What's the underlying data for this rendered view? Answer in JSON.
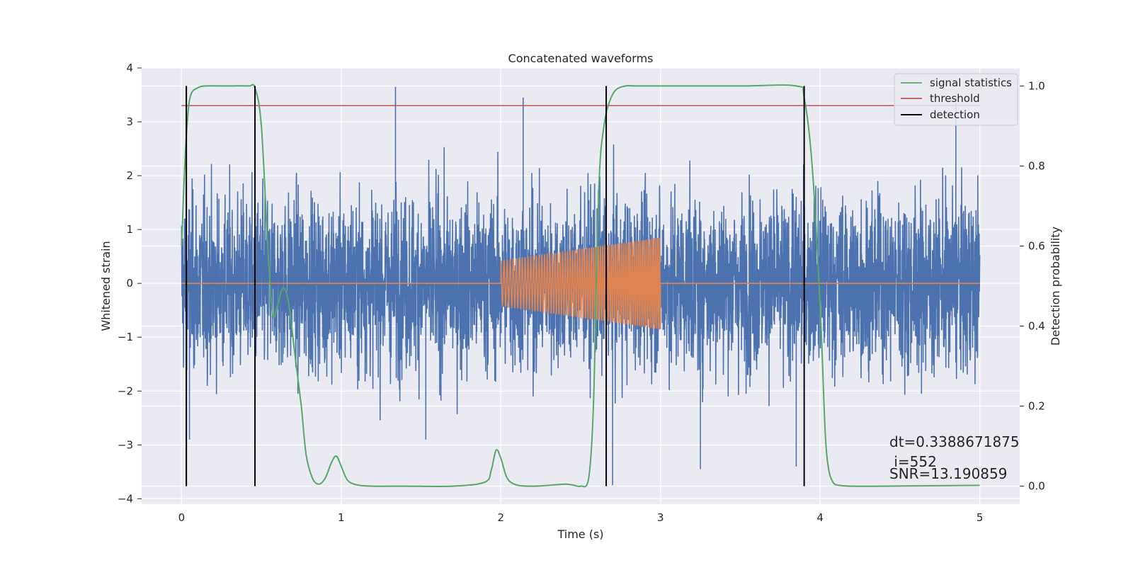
{
  "chart_data": {
    "type": "line",
    "title": "Concatenated waveforms",
    "xlabel": "Time (s)",
    "ylabel": "Whitened strain",
    "y2label": "Detection probability",
    "xlim": [
      -0.25,
      5.25
    ],
    "ylim": [
      -4.1,
      4.0
    ],
    "y2lim": [
      -0.045,
      1.045
    ],
    "x_ticks": [
      "0",
      "1",
      "2",
      "3",
      "4",
      "5"
    ],
    "y_ticks": [
      "−4",
      "−3",
      "−2",
      "−1",
      "0",
      "1",
      "2",
      "3",
      "4"
    ],
    "y2_ticks": [
      "0.0",
      "0.2",
      "0.4",
      "0.6",
      "0.8",
      "1.0"
    ],
    "grid": true,
    "legend_position": "top-right",
    "legend": [
      {
        "label": "signal statistics",
        "color": "#55a868"
      },
      {
        "label": "threshold",
        "color": "#c44e52"
      },
      {
        "label": "detection",
        "color": "#000000"
      }
    ],
    "series": [
      {
        "kind": "noise",
        "color": "#4c72b0",
        "x_range": [
          0,
          5
        ],
        "typical_amplitude": 0.8,
        "extreme_values": [
          [
            0.05,
            -2.9
          ],
          [
            1.34,
            3.65
          ],
          [
            1.53,
            -2.9
          ],
          [
            2.14,
            3.45
          ],
          [
            2.7,
            -3.75
          ],
          [
            3.25,
            -3.45
          ],
          [
            3.85,
            -3.4
          ],
          [
            4.85,
            3.35
          ]
        ]
      },
      {
        "kind": "chirp",
        "color": "#dd8452",
        "x_range": [
          0,
          5
        ],
        "chirp_start": 2.0,
        "chirp_end": 3.0,
        "amplitude_start": 0.42,
        "amplitude_end": 0.85,
        "freq_start": 50,
        "freq_end": 85
      },
      {
        "name": "signal statistics",
        "axis": "right",
        "color": "#55a868",
        "x": [
          0.0,
          0.02,
          0.04,
          0.06,
          0.1,
          0.15,
          0.3,
          0.42,
          0.46,
          0.5,
          0.54,
          0.57,
          0.6,
          0.635,
          0.67,
          0.71,
          0.75,
          0.78,
          0.82,
          0.86,
          0.9,
          0.94,
          0.97,
          1.0,
          1.04,
          1.1,
          1.2,
          1.4,
          1.7,
          1.9,
          1.94,
          1.97,
          2.0,
          2.04,
          2.1,
          2.2,
          2.3,
          2.4,
          2.45,
          2.5,
          2.55,
          2.58,
          2.6,
          2.62,
          2.65,
          2.68,
          2.72,
          2.78,
          2.85,
          3.0,
          3.5,
          3.85,
          3.9,
          3.95,
          4.0,
          4.03,
          4.05,
          4.08,
          4.12,
          4.2,
          4.4,
          5.0
        ],
        "y": [
          0.6,
          0.8,
          0.93,
          0.98,
          0.995,
          1.0,
          1.0,
          1.0,
          0.995,
          0.9,
          0.6,
          0.43,
          0.45,
          0.495,
          0.46,
          0.33,
          0.2,
          0.08,
          0.02,
          0.005,
          0.02,
          0.06,
          0.075,
          0.05,
          0.015,
          0.003,
          0.0,
          0.0,
          0.0,
          0.01,
          0.04,
          0.09,
          0.07,
          0.02,
          0.003,
          0.0,
          0.002,
          0.005,
          0.003,
          0.0,
          0.02,
          0.2,
          0.55,
          0.8,
          0.91,
          0.96,
          0.99,
          1.0,
          1.0,
          1.0,
          1.0,
          1.0,
          0.97,
          0.8,
          0.45,
          0.15,
          0.05,
          0.01,
          0.002,
          0.0,
          0.0,
          0.002
        ]
      },
      {
        "name": "threshold",
        "axis": "right",
        "color": "#c44e52",
        "x": [
          0.0,
          5.0
        ],
        "y": [
          0.951,
          0.951
        ]
      }
    ],
    "detections": [
      0.03,
      0.46,
      2.66,
      3.9
    ],
    "annotations": [
      "dt=0.3388671875",
      " i=552",
      "SNR=13.190859"
    ]
  }
}
